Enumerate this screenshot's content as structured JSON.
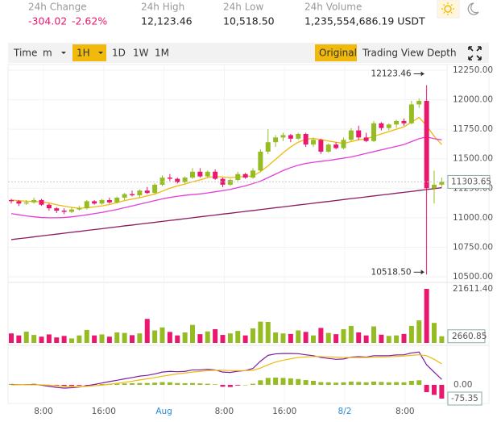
{
  "header": {
    "stats": [
      {
        "label": "24h Change",
        "value": "-304.02",
        "extra": "-2.62%"
      },
      {
        "label": "24h High",
        "value": "12,123.46"
      },
      {
        "label": "24h Low",
        "value": "10,518.50"
      },
      {
        "label": "24h Volume",
        "value": "1,235,554,686.19 USDT"
      }
    ]
  },
  "toolbar": {
    "left": [
      "Time",
      "m",
      "1H",
      "1D",
      "1W",
      "1M"
    ],
    "right": [
      "Original",
      "Trading View",
      "Depth"
    ]
  },
  "chart_data": {
    "type": "candlestick",
    "up_color": "#95bd23",
    "down_color": "#e9176e",
    "candles": [
      [
        11150,
        11160,
        11120,
        11140
      ],
      [
        11140,
        11150,
        11100,
        11120
      ],
      [
        11120,
        11150,
        11110,
        11130
      ],
      [
        11130,
        11170,
        11120,
        11150
      ],
      [
        11150,
        11160,
        11100,
        11110
      ],
      [
        11110,
        11120,
        11060,
        11080
      ],
      [
        11080,
        11090,
        11040,
        11060
      ],
      [
        11060,
        11080,
        11030,
        11050
      ],
      [
        11050,
        11090,
        11040,
        11070
      ],
      [
        11070,
        11100,
        11060,
        11080
      ],
      [
        11080,
        11150,
        11070,
        11140
      ],
      [
        11140,
        11150,
        11110,
        11120
      ],
      [
        11120,
        11160,
        11110,
        11150
      ],
      [
        11150,
        11170,
        11120,
        11130
      ],
      [
        11130,
        11180,
        11120,
        11170
      ],
      [
        11170,
        11210,
        11150,
        11200
      ],
      [
        11200,
        11230,
        11180,
        11190
      ],
      [
        11190,
        11240,
        11170,
        11230
      ],
      [
        11230,
        11260,
        11200,
        11210
      ],
      [
        11210,
        11290,
        11200,
        11280
      ],
      [
        11280,
        11360,
        11270,
        11340
      ],
      [
        11340,
        11370,
        11310,
        11330
      ],
      [
        11330,
        11340,
        11290,
        11300
      ],
      [
        11300,
        11350,
        11290,
        11340
      ],
      [
        11340,
        11420,
        11330,
        11390
      ],
      [
        11390,
        11420,
        11340,
        11350
      ],
      [
        11350,
        11400,
        11340,
        11390
      ],
      [
        11390,
        11410,
        11320,
        11330
      ],
      [
        11330,
        11340,
        11260,
        11280
      ],
      [
        11280,
        11330,
        11270,
        11320
      ],
      [
        11320,
        11390,
        11310,
        11370
      ],
      [
        11370,
        11380,
        11330,
        11340
      ],
      [
        11340,
        11420,
        11330,
        11400
      ],
      [
        11400,
        11580,
        11390,
        11560
      ],
      [
        11560,
        11750,
        11540,
        11640
      ],
      [
        11640,
        11700,
        11600,
        11680
      ],
      [
        11680,
        11720,
        11650,
        11700
      ],
      [
        11700,
        11710,
        11640,
        11670
      ],
      [
        11670,
        11720,
        11660,
        11710
      ],
      [
        11710,
        11720,
        11600,
        11620
      ],
      [
        11620,
        11680,
        11600,
        11660
      ],
      [
        11660,
        11670,
        11540,
        11560
      ],
      [
        11560,
        11630,
        11550,
        11620
      ],
      [
        11620,
        11640,
        11580,
        11590
      ],
      [
        11590,
        11680,
        11580,
        11660
      ],
      [
        11660,
        11760,
        11650,
        11740
      ],
      [
        11740,
        11780,
        11660,
        11680
      ],
      [
        11680,
        11720,
        11640,
        11650
      ],
      [
        11650,
        11820,
        11640,
        11800
      ],
      [
        11800,
        11810,
        11740,
        11760
      ],
      [
        11760,
        11800,
        11740,
        11790
      ],
      [
        11790,
        11830,
        11760,
        11820
      ],
      [
        11820,
        11840,
        11780,
        11800
      ],
      [
        11800,
        11990,
        11790,
        11960
      ],
      [
        11960,
        12010,
        11930,
        11990
      ],
      [
        11990,
        12123.46,
        10518.5,
        11250
      ],
      [
        11250,
        11400,
        11120,
        11280
      ],
      [
        11280,
        11340,
        11260,
        11303.65
      ]
    ],
    "ma_lines": [
      {
        "color": "#f0b90b",
        "values": [
          11150,
          11145,
          11140,
          11138,
          11135,
          11125,
          11110,
          11098,
          11088,
          11080,
          11085,
          11092,
          11100,
          11112,
          11128,
          11145,
          11158,
          11170,
          11185,
          11200,
          11225,
          11250,
          11270,
          11285,
          11305,
          11320,
          11340,
          11350,
          11345,
          11340,
          11345,
          11350,
          11355,
          11390,
          11440,
          11495,
          11550,
          11600,
          11640,
          11665,
          11672,
          11662,
          11650,
          11640,
          11630,
          11645,
          11660,
          11668,
          11690,
          11710,
          11730,
          11750,
          11770,
          11810,
          11850,
          11780,
          11690,
          11620
        ]
      },
      {
        "color": "#e33fd6",
        "values": [
          11035,
          11025,
          11015,
          11008,
          11002,
          11000,
          11000,
          11002,
          11008,
          11015,
          11025,
          11035,
          11045,
          11058,
          11070,
          11085,
          11100,
          11115,
          11130,
          11145,
          11160,
          11172,
          11182,
          11190,
          11196,
          11202,
          11210,
          11220,
          11230,
          11240,
          11255,
          11270,
          11290,
          11310,
          11340,
          11370,
          11400,
          11425,
          11445,
          11460,
          11470,
          11478,
          11485,
          11495,
          11505,
          11515,
          11530,
          11545,
          11560,
          11575,
          11590,
          11605,
          11620,
          11645,
          11670,
          11685,
          11670,
          11660
        ]
      },
      {
        "color": "#8c1a5e",
        "values": [
          10815,
          10823,
          10830,
          10838,
          10846,
          10854,
          10861,
          10869,
          10877,
          10884,
          10892,
          10900,
          10907,
          10915,
          10923,
          10931,
          10938,
          10946,
          10954,
          10961,
          10969,
          10977,
          10984,
          10992,
          11000,
          11008,
          11015,
          11023,
          11031,
          11038,
          11046,
          11054,
          11061,
          11069,
          11077,
          11085,
          11092,
          11100,
          11108,
          11115,
          11123,
          11131,
          11138,
          11146,
          11154,
          11162,
          11169,
          11177,
          11185,
          11192,
          11200,
          11208,
          11215,
          11223,
          11231,
          11239,
          11246,
          11255
        ]
      }
    ],
    "ylim": [
      10500,
      12250
    ],
    "yticks": [
      {
        "value": 12250,
        "label": "12250.00"
      },
      {
        "value": 12000,
        "label": "12000.00"
      },
      {
        "value": 11750,
        "label": "11750.00"
      },
      {
        "value": 11500,
        "label": "11500.00"
      },
      {
        "value": 11250,
        "label": "11250.00"
      },
      {
        "value": 11000,
        "label": "11000.00"
      },
      {
        "value": 10750,
        "label": "10750.00"
      },
      {
        "value": 10500,
        "label": "10500.00"
      }
    ],
    "high_label": {
      "value": 12123.46,
      "label": "12123.46"
    },
    "low_label": {
      "value": 10518.5,
      "label": "10518.50"
    },
    "last_price": {
      "value": 11303.65,
      "label": "11303.65"
    },
    "volumes": [
      3800,
      3000,
      4500,
      3200,
      2500,
      3400,
      2200,
      2800,
      1800,
      3000,
      5200,
      3000,
      3400,
      2500,
      4200,
      4000,
      3100,
      3800,
      9600,
      5000,
      6200,
      4400,
      3000,
      4200,
      7200,
      3500,
      4600,
      5500,
      3200,
      3800,
      4800,
      3000,
      5800,
      8500,
      8400,
      4200,
      3800,
      3600,
      5000,
      4400,
      3000,
      6000,
      4000,
      3500,
      5500,
      6800,
      4200,
      3000,
      6600,
      3300,
      2800,
      3000,
      3600,
      6800,
      9000,
      21611.4,
      8000,
      2660.85
    ],
    "volume_ylim": [
      0,
      21611.4
    ],
    "volume_ticks": [
      {
        "value": 21611.4,
        "label": "21611.40"
      }
    ],
    "volume_last": {
      "value": 2660.85,
      "label": "2660.85"
    },
    "macd_hist": [
      5,
      3,
      4,
      6,
      2,
      -3,
      -6,
      -8,
      -6,
      -4,
      -2,
      2,
      4,
      5,
      6,
      8,
      9,
      10,
      10,
      12,
      15,
      14,
      10,
      9,
      10,
      8,
      6,
      3,
      -10,
      -12,
      -4,
      0,
      6,
      25,
      38,
      40,
      38,
      35,
      32,
      26,
      22,
      15,
      14,
      12,
      14,
      18,
      16,
      14,
      18,
      16,
      14,
      15,
      14,
      22,
      25,
      -40,
      -55,
      -75.35
    ],
    "macd_lines": [
      {
        "color": "#7b1fa2",
        "values": [
          2,
          0,
          0,
          2,
          -2,
          -8,
          -14,
          -18,
          -16,
          -12,
          -5,
          2,
          10,
          18,
          25,
          33,
          40,
          48,
          52,
          60,
          70,
          74,
          72,
          74,
          82,
          82,
          85,
          82,
          70,
          68,
          75,
          78,
          90,
          130,
          162,
          170,
          172,
          172,
          171,
          165,
          160,
          150,
          145,
          140,
          142,
          152,
          155,
          152,
          160,
          160,
          160,
          164,
          165,
          175,
          180,
          110,
          70,
          30
        ]
      },
      {
        "color": "#f0b90b",
        "values": [
          0,
          0,
          0,
          0,
          0,
          -2,
          -5,
          -8,
          -10,
          -10,
          -8,
          -5,
          -2,
          3,
          8,
          14,
          20,
          27,
          33,
          40,
          47,
          54,
          60,
          65,
          70,
          74,
          78,
          80,
          80,
          78,
          78,
          78,
          80,
          92,
          110,
          125,
          135,
          143,
          150,
          153,
          155,
          155,
          154,
          152,
          150,
          150,
          150,
          150,
          152,
          153,
          154,
          156,
          158,
          162,
          165,
          160,
          140,
          115
        ]
      }
    ],
    "macd_ylim": [
      -102,
      199
    ],
    "macd_ticks": [
      {
        "value": 0,
        "label": "0.00"
      }
    ],
    "macd_last": {
      "value": -75.35,
      "label": "-75.35"
    },
    "x_labels": [
      {
        "text": "8:00",
        "color": "#555555"
      },
      {
        "text": "16:00",
        "color": "#555555"
      },
      {
        "text": "Aug",
        "color": "#2a8ad9"
      },
      {
        "text": "8:00",
        "color": "#555555"
      },
      {
        "text": "16:00",
        "color": "#555555"
      },
      {
        "text": "8/2",
        "color": "#2a8ad9"
      },
      {
        "text": "8:00",
        "color": "#555555"
      }
    ],
    "grid": true
  }
}
